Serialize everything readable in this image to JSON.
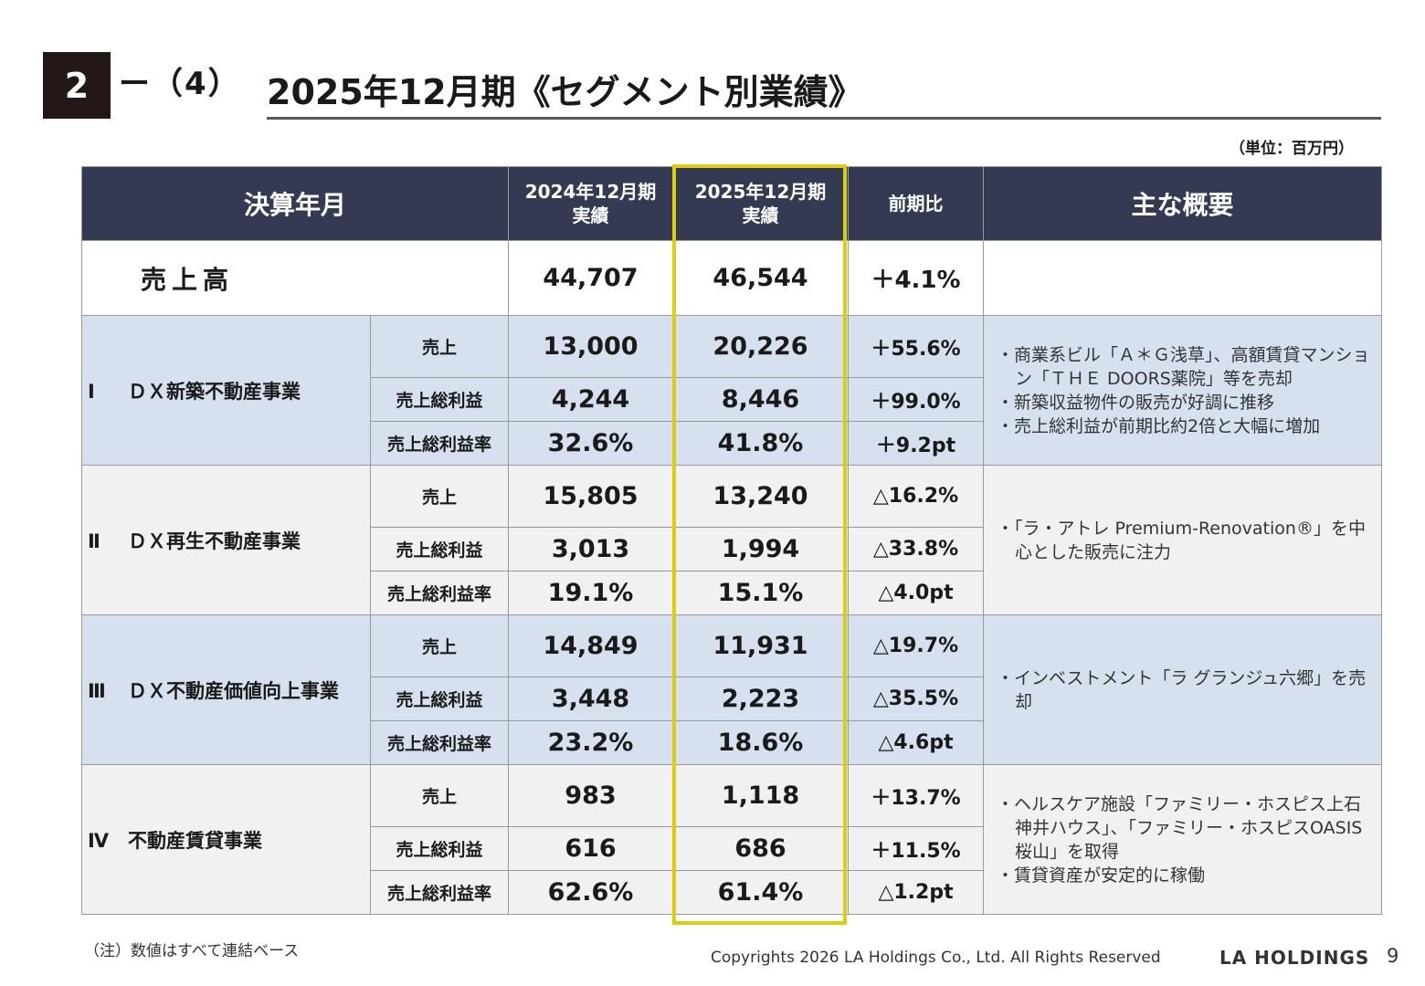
{
  "header": {
    "section_num": "2",
    "section_sub": "ー（4）",
    "title": "2025年12月期《セグメント別業績》",
    "unit": "（単位：百万円）"
  },
  "table": {
    "headers": {
      "period": "決算年月",
      "prev": "2024年12月期\n実績",
      "curr": "2025年12月期\n実績",
      "yoy": "前期比",
      "summary": "主な概要"
    },
    "sales": {
      "label": "売上高",
      "prev": "44,707",
      "curr": "46,544",
      "yoy": "＋4.1%",
      "summary": ""
    },
    "segments": [
      {
        "num": "Ⅰ",
        "name": "ＤＸ新築不動産事業",
        "rows": [
          {
            "metric": "売上",
            "prev": "13,000",
            "curr": "20,226",
            "yoy": "＋55.6%"
          },
          {
            "metric": "売上総利益",
            "prev": "4,244",
            "curr": "8,446",
            "yoy": "＋99.0%"
          },
          {
            "metric": "売上総利益率",
            "prev": "32.6%",
            "curr": "41.8%",
            "yoy": "＋9.2pt"
          }
        ],
        "summary": [
          "・商業系ビル「Ａ＊Ｇ浅草」、高額賃貸マンション「ＴＨＥ DOORS薬院」等を売却",
          "・新築収益物件の販売が好調に推移",
          "・売上総利益が前期比約2倍と大幅に増加"
        ]
      },
      {
        "num": "Ⅱ",
        "name": "ＤＸ再生不動産事業",
        "rows": [
          {
            "metric": "売上",
            "prev": "15,805",
            "curr": "13,240",
            "yoy": "△16.2%"
          },
          {
            "metric": "売上総利益",
            "prev": "3,013",
            "curr": "1,994",
            "yoy": "△33.8%"
          },
          {
            "metric": "売上総利益率",
            "prev": "19.1%",
            "curr": "15.1%",
            "yoy": "△4.0pt"
          }
        ],
        "summary": [
          "・「ラ・アトレ Premium-Renovation®」を中心とした販売に注力"
        ]
      },
      {
        "num": "Ⅲ",
        "name": "ＤＸ不動産価値向上事業",
        "rows": [
          {
            "metric": "売上",
            "prev": "14,849",
            "curr": "11,931",
            "yoy": "△19.7%"
          },
          {
            "metric": "売上総利益",
            "prev": "3,448",
            "curr": "2,223",
            "yoy": "△35.5%"
          },
          {
            "metric": "売上総利益率",
            "prev": "23.2%",
            "curr": "18.6%",
            "yoy": "△4.6pt"
          }
        ],
        "summary": [
          "・インベストメント「ラ グランジュ六郷」を売却"
        ]
      },
      {
        "num": "Ⅳ",
        "name": "不動産賃貸事業",
        "rows": [
          {
            "metric": "売上",
            "prev": "983",
            "curr": "1,118",
            "yoy": "＋13.7%"
          },
          {
            "metric": "売上総利益",
            "prev": "616",
            "curr": "686",
            "yoy": "＋11.5%"
          },
          {
            "metric": "売上総利益率",
            "prev": "62.6%",
            "curr": "61.4%",
            "yoy": "△1.2pt"
          }
        ],
        "summary": [
          "・ヘルスケア施設「ファミリー・ホスピス上石神井ハウス」、「ファミリー・ホスピスOASIS桜山」を取得",
          "・賃貸資産が安定的に稼働"
        ]
      }
    ]
  },
  "footer": {
    "note": "（注）数値はすべて連結ベース",
    "copyright": "Copyrights 2026 LA Holdings Co., Ltd.  All Rights Reserved",
    "logo": "LA HOLDINGS",
    "page": "9"
  },
  "colors": {
    "header_bg": "#353a53",
    "blue_row": "#d6e0ef",
    "gray_row": "#f1f1f1",
    "highlight": "#dccd11"
  }
}
